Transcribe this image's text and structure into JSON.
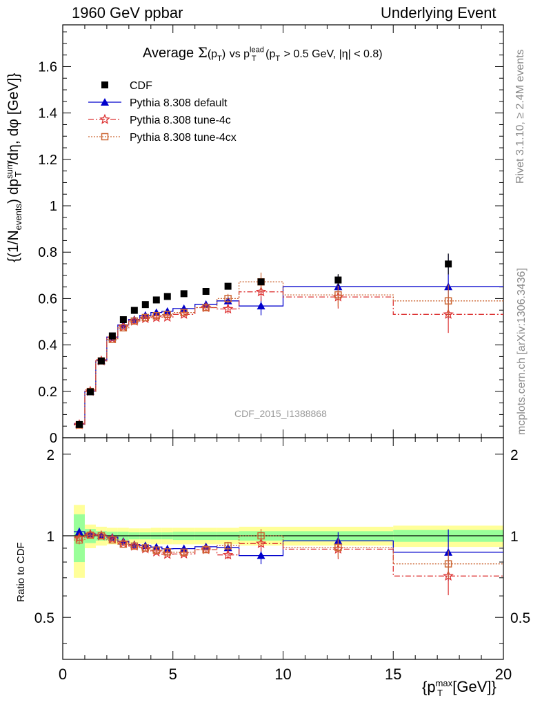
{
  "header": {
    "left": "1960 GeV ppbar",
    "right": "Underlying Event"
  },
  "side": {
    "rivet": "Rivet 3.1.10, ≥ 2.4M events",
    "mcplots": "mcplots.cern.ch [arXiv:1306.3436]"
  },
  "plot": {
    "title_main": "Average",
    "title_sigma": "Σ",
    "title_arg": "(p",
    "title_sub": "T",
    "title_close": ")",
    "title_vs": "vs p",
    "title_lead": "lead",
    "title_t": "T",
    "title_cut_a": "(p",
    "title_cut_t": "T",
    "title_cut_b": "> 0.5 GeV, |η| < 0.8)",
    "watermark": "CDF_2015_I1388868",
    "ylabel_main": "{(1/N",
    "ylabel_events": "events",
    "ylabel_rest": ") dp",
    "ylabel_sum": "sum",
    "ylabel_t": "T",
    "ylabel_tail": "/dη, dφ [GeV]}",
    "xlabel_main": "{p",
    "xlabel_max": "max",
    "xlabel_t": "T",
    "xlabel_tail": "[GeV]}",
    "ratio_ylabel": "Ratio to CDF"
  },
  "chart_data": {
    "type": "scatter",
    "xlim": [
      0,
      20
    ],
    "ylim": [
      0,
      1.78
    ],
    "ratio_ylim": [
      0.35,
      2.3
    ],
    "ratio_log_scale": true,
    "x_ticks": [
      0,
      5,
      10,
      15,
      20
    ],
    "x_tick_labels": [
      "0",
      "5",
      "10",
      "15",
      "20"
    ],
    "y_ticks": [
      0,
      0.2,
      0.4,
      0.6,
      0.8,
      1,
      1.2,
      1.4,
      1.6
    ],
    "y_tick_labels": [
      "0",
      "0.2",
      "0.4",
      "0.6",
      "0.8",
      "1",
      "1.2",
      "1.4",
      "1.6"
    ],
    "ratio_ticks": [
      0.5,
      1,
      2
    ],
    "ratio_tick_labels": [
      "0.5",
      "1",
      "2"
    ],
    "legend_position": "top-left",
    "x_edges": [
      0.5,
      1.0,
      1.5,
      2.0,
      2.5,
      3.0,
      3.5,
      4.0,
      4.5,
      5.0,
      6.0,
      7.0,
      8.0,
      10.0,
      15.0,
      20.0
    ],
    "x": [
      0.75,
      1.25,
      1.75,
      2.25,
      2.75,
      3.25,
      3.75,
      4.25,
      4.75,
      5.5,
      6.5,
      7.5,
      9.0,
      12.5,
      17.5
    ],
    "data": {
      "name": "CDF",
      "color": "#000000",
      "y": [
        0.057,
        0.198,
        0.331,
        0.439,
        0.509,
        0.549,
        0.574,
        0.594,
        0.609,
        0.621,
        0.631,
        0.653,
        0.672,
        0.68,
        0.749
      ],
      "yerr": [
        0.004,
        0.006,
        0.008,
        0.009,
        0.01,
        0.01,
        0.01,
        0.011,
        0.011,
        0.011,
        0.012,
        0.012,
        0.014,
        0.025,
        0.045
      ],
      "band_inner": [
        0.2,
        0.06,
        0.04,
        0.035,
        0.035,
        0.03,
        0.03,
        0.03,
        0.03,
        0.035,
        0.035,
        0.035,
        0.04,
        0.04,
        0.05
      ],
      "band_outer": [
        0.3,
        0.1,
        0.08,
        0.07,
        0.07,
        0.065,
        0.065,
        0.07,
        0.07,
        0.07,
        0.07,
        0.07,
        0.08,
        0.08,
        0.09
      ]
    },
    "series": [
      {
        "name": "Pythia 8.308 default",
        "color": "#0000cc",
        "line": "solid",
        "marker": "triangle",
        "y": [
          0.059,
          0.201,
          0.332,
          0.434,
          0.486,
          0.51,
          0.528,
          0.54,
          0.545,
          0.557,
          0.575,
          0.59,
          0.568,
          0.651,
          0.651
        ],
        "yerr": [
          0.002,
          0.003,
          0.004,
          0.005,
          0.006,
          0.007,
          0.008,
          0.009,
          0.01,
          0.012,
          0.015,
          0.02,
          0.04,
          0.05,
          0.14
        ]
      },
      {
        "name": "Pythia 8.308 tune-4c",
        "color": "#dd3333",
        "line": "dashdot",
        "marker": "star",
        "y": [
          0.056,
          0.2,
          0.331,
          0.428,
          0.478,
          0.503,
          0.514,
          0.518,
          0.52,
          0.532,
          0.561,
          0.555,
          0.629,
          0.607,
          0.532
        ],
        "yerr": [
          0.002,
          0.003,
          0.004,
          0.005,
          0.006,
          0.007,
          0.008,
          0.009,
          0.01,
          0.012,
          0.015,
          0.02,
          0.04,
          0.05,
          0.08
        ]
      },
      {
        "name": "Pythia 8.308 tune-4cx",
        "color": "#cc6633",
        "line": "dotted",
        "marker": "square-open",
        "y": [
          0.055,
          0.199,
          0.331,
          0.424,
          0.474,
          0.503,
          0.518,
          0.526,
          0.531,
          0.54,
          0.561,
          0.6,
          0.672,
          0.616,
          0.59
        ],
        "yerr": [
          0.002,
          0.003,
          0.004,
          0.005,
          0.006,
          0.007,
          0.008,
          0.009,
          0.01,
          0.012,
          0.015,
          0.02,
          0.04,
          0.05,
          0.07
        ]
      }
    ]
  }
}
